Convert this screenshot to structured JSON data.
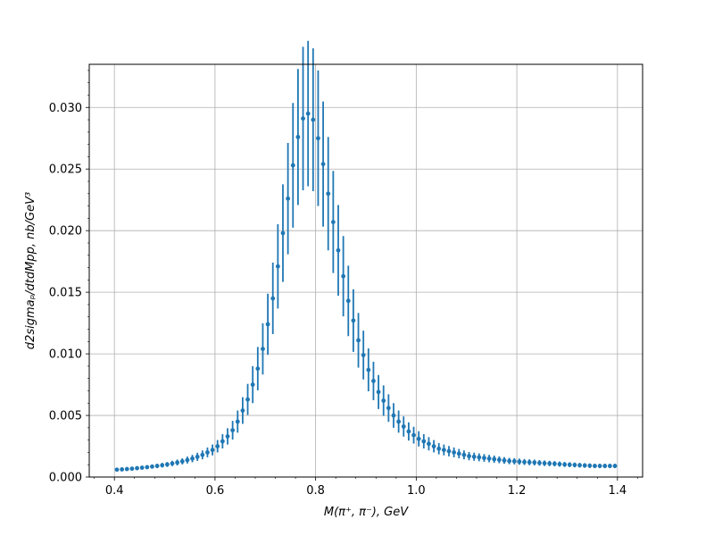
{
  "chart_data": {
    "type": "scatter",
    "subtype": "errorbar",
    "title": "",
    "xlabel": "M(π⁺, π⁻), GeV",
    "ylabel": "d2sigmaₚ/dtdMpp, nb/GeV³",
    "xlim": [
      0.35,
      1.45
    ],
    "ylim": [
      0.0,
      0.0335
    ],
    "x_ticks": [
      0.4,
      0.6,
      0.8,
      1.0,
      1.2,
      1.4
    ],
    "x_tick_labels": [
      "0.4",
      "0.6",
      "0.8",
      "1.0",
      "1.2",
      "1.4"
    ],
    "y_ticks": [
      0.0,
      0.005,
      0.01,
      0.015,
      0.02,
      0.025,
      0.03
    ],
    "y_tick_labels": [
      "0.000",
      "0.005",
      "0.010",
      "0.015",
      "0.020",
      "0.025",
      "0.030"
    ],
    "grid": true,
    "minor_ticks": true,
    "marker_color": "#1f77b4",
    "series": [
      {
        "x": [
          0.405,
          0.415,
          0.425,
          0.435,
          0.445,
          0.455,
          0.465,
          0.475,
          0.485,
          0.495,
          0.505,
          0.515,
          0.525,
          0.535,
          0.545,
          0.555,
          0.565,
          0.575,
          0.585,
          0.595,
          0.605,
          0.615,
          0.625,
          0.635,
          0.645,
          0.655,
          0.665,
          0.675,
          0.685,
          0.695,
          0.705,
          0.715,
          0.725,
          0.735,
          0.745,
          0.755,
          0.765,
          0.775,
          0.785,
          0.795,
          0.805,
          0.815,
          0.825,
          0.835,
          0.845,
          0.855,
          0.865,
          0.875,
          0.885,
          0.895,
          0.905,
          0.915,
          0.925,
          0.935,
          0.945,
          0.955,
          0.965,
          0.975,
          0.985,
          0.995,
          1.005,
          1.015,
          1.025,
          1.035,
          1.045,
          1.055,
          1.065,
          1.075,
          1.085,
          1.095,
          1.105,
          1.115,
          1.125,
          1.135,
          1.145,
          1.155,
          1.165,
          1.175,
          1.185,
          1.195,
          1.205,
          1.215,
          1.225,
          1.235,
          1.245,
          1.255,
          1.265,
          1.275,
          1.285,
          1.295,
          1.305,
          1.315,
          1.325,
          1.335,
          1.345,
          1.355,
          1.365,
          1.375,
          1.385,
          1.395
        ],
        "y": [
          0.0006,
          0.00062,
          0.00065,
          0.00068,
          0.00072,
          0.00076,
          0.0008,
          0.00085,
          0.0009,
          0.00096,
          0.00102,
          0.0011,
          0.00118,
          0.00127,
          0.00138,
          0.0015,
          0.00164,
          0.0018,
          0.002,
          0.0022,
          0.0025,
          0.0029,
          0.0033,
          0.0038,
          0.0045,
          0.0054,
          0.0063,
          0.0075,
          0.0088,
          0.0104,
          0.0124,
          0.0145,
          0.0171,
          0.0198,
          0.0226,
          0.0253,
          0.0276,
          0.0291,
          0.0295,
          0.029,
          0.0275,
          0.0254,
          0.023,
          0.0207,
          0.0184,
          0.0163,
          0.0143,
          0.0127,
          0.0111,
          0.0099,
          0.0087,
          0.0078,
          0.0069,
          0.0062,
          0.0056,
          0.005,
          0.0045,
          0.0041,
          0.0037,
          0.0034,
          0.0031,
          0.0029,
          0.0027,
          0.0025,
          0.0023,
          0.0022,
          0.0021,
          0.002,
          0.0019,
          0.0018,
          0.0017,
          0.00165,
          0.0016,
          0.00155,
          0.0015,
          0.00145,
          0.0014,
          0.00135,
          0.0013,
          0.00128,
          0.00125,
          0.00122,
          0.0012,
          0.00118,
          0.00115,
          0.00112,
          0.0011,
          0.00108,
          0.00105,
          0.00102,
          0.001,
          0.00098,
          0.00096,
          0.00094,
          0.00092,
          0.0009,
          0.0009,
          0.0009,
          0.0009,
          0.0009
        ],
        "yerr": [
          0.00012,
          0.00012,
          0.00013,
          0.00014,
          0.00014,
          0.00015,
          0.00016,
          0.00017,
          0.00018,
          0.00019,
          0.0002,
          0.00022,
          0.00024,
          0.00025,
          0.00028,
          0.0003,
          0.00033,
          0.00036,
          0.0004,
          0.00044,
          0.0005,
          0.00058,
          0.00066,
          0.00076,
          0.0009,
          0.00108,
          0.00126,
          0.0015,
          0.00176,
          0.00208,
          0.00248,
          0.0029,
          0.00342,
          0.00396,
          0.00452,
          0.00506,
          0.00552,
          0.00582,
          0.0059,
          0.0058,
          0.0055,
          0.00508,
          0.0046,
          0.00414,
          0.00368,
          0.00326,
          0.00286,
          0.00254,
          0.00222,
          0.00198,
          0.00174,
          0.00156,
          0.00138,
          0.00124,
          0.00112,
          0.001,
          0.0009,
          0.00082,
          0.00074,
          0.00068,
          0.00062,
          0.00058,
          0.00054,
          0.0005,
          0.00046,
          0.00044,
          0.00042,
          0.0004,
          0.00038,
          0.00036,
          0.00034,
          0.00033,
          0.00032,
          0.00031,
          0.0003,
          0.00029,
          0.00028,
          0.00027,
          0.00026,
          0.000256,
          0.00025,
          0.000244,
          0.00024,
          0.000236,
          0.00023,
          0.000224,
          0.00022,
          0.000216,
          0.00021,
          0.000204,
          0.0002,
          0.000196,
          0.000192,
          0.000188,
          0.000184,
          0.00018,
          0.00018,
          0.00018,
          0.00018,
          0.00018
        ]
      }
    ]
  }
}
